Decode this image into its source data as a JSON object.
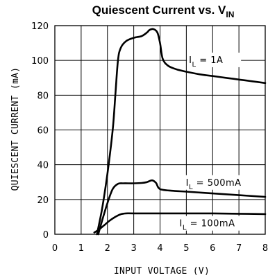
{
  "chart_data": {
    "type": "line",
    "title": "Quiescent Current vs. V",
    "title_subscript": "IN",
    "xlabel": "INPUT VOLTAGE (V)",
    "ylabel": "QUIESCENT CURRENT (mA)",
    "xlim": [
      0,
      8
    ],
    "ylim": [
      0,
      120
    ],
    "xticks": [
      0,
      1,
      2,
      3,
      4,
      5,
      6,
      7,
      8
    ],
    "yticks": [
      0,
      20,
      40,
      60,
      80,
      100,
      120
    ],
    "grid": true,
    "series": [
      {
        "label_main": "I",
        "label_sub": "L",
        "label_rest": " = 1A",
        "x": [
          1.6,
          1.8,
          2.0,
          2.2,
          2.3,
          2.4,
          2.5,
          2.7,
          3.0,
          3.3,
          3.5,
          3.6,
          3.75,
          3.9,
          4.0,
          4.1,
          4.3,
          4.6,
          5.0,
          5.5,
          6.0,
          6.5,
          7.0,
          7.5,
          8.0
        ],
        "y": [
          0,
          15,
          35,
          60,
          80,
          100,
          107,
          111,
          113,
          114,
          116,
          117.5,
          118,
          116,
          110,
          101,
          97,
          95,
          93.5,
          92,
          91,
          90,
          89,
          88,
          87
        ]
      },
      {
        "label_main": "I",
        "label_sub": "L",
        "label_rest": " = 500mA",
        "x": [
          1.65,
          1.8,
          2.0,
          2.2,
          2.4,
          2.6,
          3.0,
          3.3,
          3.5,
          3.7,
          3.85,
          4.0,
          4.5,
          5.0,
          6.0,
          7.0,
          8.0
        ],
        "y": [
          0,
          8,
          18,
          26,
          29,
          29.3,
          29.3,
          29.5,
          30,
          31,
          29.5,
          26,
          25,
          24.5,
          23.5,
          22.5,
          21.5
        ]
      },
      {
        "label_main": "I",
        "label_sub": "L",
        "label_rest": " = 100mA",
        "x": [
          1.5,
          1.7,
          1.9,
          2.1,
          2.3,
          2.5,
          2.7,
          3.0,
          4.0,
          5.0,
          6.0,
          7.0,
          8.0
        ],
        "y": [
          1,
          3,
          5.5,
          8,
          10,
          11.5,
          12,
          12,
          12,
          12,
          12,
          11.8,
          11.6
        ]
      }
    ]
  }
}
